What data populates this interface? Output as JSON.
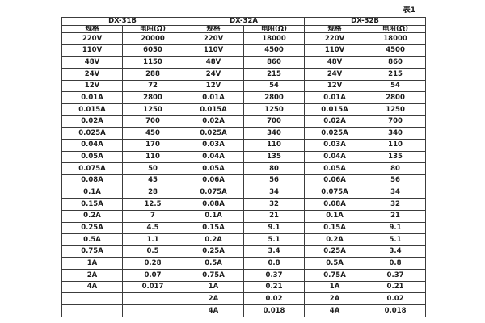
{
  "page": {
    "caption": "表1"
  },
  "colors": {
    "background": "#ffffff",
    "border": "#3c3c3c",
    "text": "#1c1c1c"
  },
  "table": {
    "groups": [
      {
        "name": "DX-31B"
      },
      {
        "name": "DX-32A"
      },
      {
        "name": "DX-32B"
      }
    ],
    "sub_headers": [
      "规格",
      "电阻(Ω)"
    ],
    "rows": [
      [
        "220V",
        "20000",
        "220V",
        "18000",
        "220V",
        "18000"
      ],
      [
        "110V",
        "6050",
        "110V",
        "4500",
        "110V",
        "4500"
      ],
      [
        "48V",
        "1150",
        "48V",
        "860",
        "48V",
        "860"
      ],
      [
        "24V",
        "288",
        "24V",
        "215",
        "24V",
        "215"
      ],
      [
        "12V",
        "72",
        "12V",
        "54",
        "12V",
        "54"
      ],
      [
        "0.01A",
        "2800",
        "0.01A",
        "2800",
        "0.01A",
        "2800"
      ],
      [
        "0.015A",
        "1250",
        "0.015A",
        "1250",
        "0.015A",
        "1250"
      ],
      [
        "0.02A",
        "700",
        "0.02A",
        "700",
        "0.02A",
        "700"
      ],
      [
        "0.025A",
        "450",
        "0.025A",
        "340",
        "0.025A",
        "340"
      ],
      [
        "0.04A",
        "170",
        "0.03A",
        "110",
        "0.03A",
        "110"
      ],
      [
        "0.05A",
        "110",
        "0.04A",
        "135",
        "0.04A",
        "135"
      ],
      [
        "0.075A",
        "50",
        "0.05A",
        "80",
        "0.05A",
        "80"
      ],
      [
        "0.08A",
        "45",
        "0.06A",
        "56",
        "0.06A",
        "56"
      ],
      [
        "0.1A",
        "28",
        "0.075A",
        "34",
        "0.075A",
        "34"
      ],
      [
        "0.15A",
        "12.5",
        "0.08A",
        "32",
        "0.08A",
        "32"
      ],
      [
        "0.2A",
        "7",
        "0.1A",
        "21",
        "0.1A",
        "21"
      ],
      [
        "0.25A",
        "4.5",
        "0.15A",
        "9.1",
        "0.15A",
        "9.1"
      ],
      [
        "0.5A",
        "1.1",
        "0.2A",
        "5.1",
        "0.2A",
        "5.1"
      ],
      [
        "0.75A",
        "0.5",
        "0.25A",
        "3.4",
        "0.25A",
        "3.4"
      ],
      [
        "1A",
        "0.28",
        "0.5A",
        "0.8",
        "0.5A",
        "0.8"
      ],
      [
        "2A",
        "0.07",
        "0.75A",
        "0.37",
        "0.75A",
        "0.37"
      ],
      [
        "4A",
        "0.017",
        "1A",
        "0.21",
        "1A",
        "0.21"
      ],
      [
        "",
        "",
        "2A",
        "0.02",
        "2A",
        "0.02"
      ],
      [
        "",
        "",
        "4A",
        "0.018",
        "4A",
        "0.018"
      ]
    ]
  }
}
